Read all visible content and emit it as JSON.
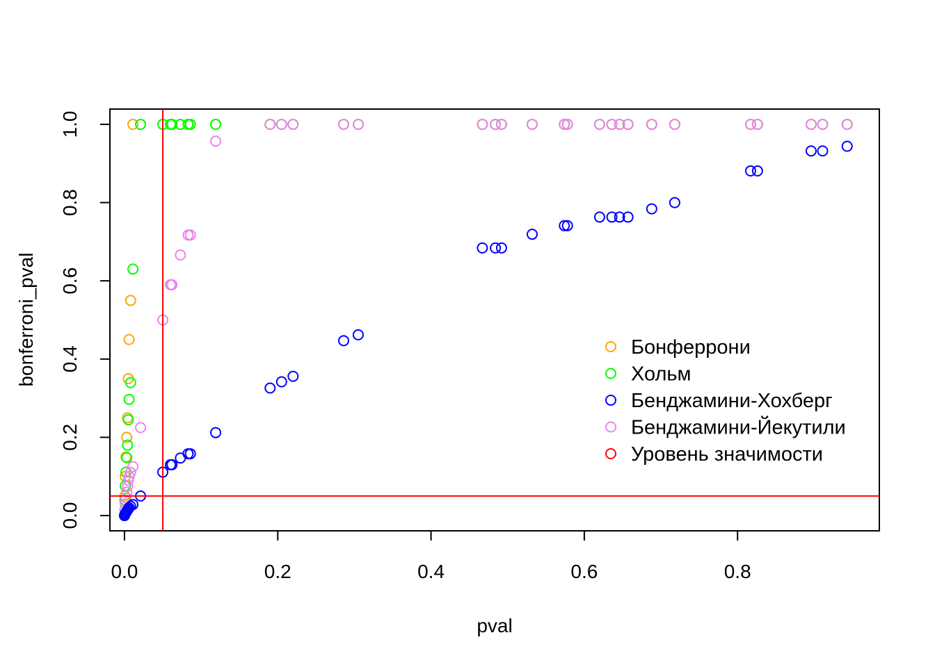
{
  "chart_data": {
    "type": "scatter",
    "xlabel": "pval",
    "ylabel": "bonferroni_pval",
    "xlim": [
      -0.019,
      0.985
    ],
    "ylim": [
      -0.039,
      1.039
    ],
    "xticks": [
      "0.0",
      "0.2",
      "0.4",
      "0.6",
      "0.8"
    ],
    "xtick_values": [
      0,
      0.2,
      0.4,
      0.6,
      0.8
    ],
    "yticks": [
      "0.0",
      "0.2",
      "0.4",
      "0.6",
      "0.8",
      "1.0"
    ],
    "ytick_values": [
      0,
      0.2,
      0.4,
      0.6,
      0.8,
      1.0
    ],
    "grid": false,
    "legend_position": "right",
    "significance_level": 0.05,
    "series": [
      {
        "name": "Бонферрони",
        "color": "#FFA500",
        "x": [
          0.0,
          0.0005,
          0.001,
          0.002,
          0.003,
          0.004,
          0.005,
          0.006,
          0.008,
          0.011,
          0.021,
          0.05,
          0.06,
          0.062,
          0.073,
          0.083,
          0.086,
          0.119,
          0.19,
          0.205,
          0.22,
          0.286,
          0.305,
          0.467,
          0.484,
          0.492,
          0.532,
          0.574,
          0.578,
          0.62,
          0.636,
          0.646,
          0.657,
          0.688,
          0.718,
          0.817,
          0.826,
          0.896,
          0.911,
          0.943
        ],
        "y": [
          0.0,
          0.05,
          0.1,
          0.15,
          0.2,
          0.25,
          0.35,
          0.45,
          0.55,
          1.0,
          1.0,
          1.0,
          1.0,
          1.0,
          1.0,
          1.0,
          1.0,
          1.0,
          1.0,
          1.0,
          1.0,
          1.0,
          1.0,
          1.0,
          1.0,
          1.0,
          1.0,
          1.0,
          1.0,
          1.0,
          1.0,
          1.0,
          1.0,
          1.0,
          1.0,
          1.0,
          1.0,
          1.0,
          1.0,
          1.0
        ]
      },
      {
        "name": "Хольм",
        "color": "#00FF00",
        "x": [
          0.0,
          0.0005,
          0.001,
          0.002,
          0.003,
          0.004,
          0.005,
          0.006,
          0.008,
          0.011,
          0.021,
          0.05,
          0.06,
          0.062,
          0.073,
          0.083,
          0.086,
          0.119,
          0.19,
          0.205,
          0.22,
          0.286,
          0.305,
          0.467,
          0.484,
          0.492,
          0.532,
          0.574,
          0.578,
          0.62,
          0.636,
          0.646,
          0.657,
          0.688,
          0.718,
          0.817,
          0.826,
          0.896,
          0.911,
          0.943
        ],
        "y": [
          0.0,
          0.04,
          0.076,
          0.111,
          0.148,
          0.18,
          0.245,
          0.297,
          0.34,
          0.63,
          1.0,
          1.0,
          1.0,
          1.0,
          1.0,
          1.0,
          1.0,
          1.0,
          1.0,
          1.0,
          1.0,
          1.0,
          1.0,
          1.0,
          1.0,
          1.0,
          1.0,
          1.0,
          1.0,
          1.0,
          1.0,
          1.0,
          1.0,
          1.0,
          1.0,
          1.0,
          1.0,
          1.0,
          1.0,
          1.0
        ]
      },
      {
        "name": "Бенджамини-Йекутили",
        "color": "#EE82EE",
        "x": [
          0.0,
          0.0005,
          0.001,
          0.002,
          0.003,
          0.004,
          0.005,
          0.006,
          0.008,
          0.011,
          0.021,
          0.05,
          0.06,
          0.062,
          0.073,
          0.083,
          0.086,
          0.119,
          0.19,
          0.205,
          0.22,
          0.286,
          0.305,
          0.467,
          0.484,
          0.492,
          0.532,
          0.574,
          0.578,
          0.62,
          0.636,
          0.646,
          0.657,
          0.688,
          0.718,
          0.817,
          0.826,
          0.896,
          0.911,
          0.943
        ],
        "y": [
          0.0,
          0.015,
          0.03,
          0.045,
          0.06,
          0.075,
          0.09,
          0.1,
          0.11,
          0.125,
          0.225,
          0.5,
          0.59,
          0.59,
          0.666,
          0.717,
          0.717,
          0.957,
          1.0,
          1.0,
          1.0,
          1.0,
          1.0,
          1.0,
          1.0,
          1.0,
          1.0,
          1.0,
          1.0,
          1.0,
          1.0,
          1.0,
          1.0,
          1.0,
          1.0,
          1.0,
          1.0,
          1.0,
          1.0,
          1.0
        ]
      },
      {
        "name": "Бенджамини-Хохберг",
        "color": "#0000FF",
        "x": [
          0.0,
          0.0005,
          0.001,
          0.002,
          0.003,
          0.004,
          0.005,
          0.006,
          0.008,
          0.011,
          0.021,
          0.05,
          0.06,
          0.062,
          0.073,
          0.083,
          0.086,
          0.119,
          0.19,
          0.205,
          0.22,
          0.286,
          0.305,
          0.467,
          0.484,
          0.492,
          0.532,
          0.574,
          0.578,
          0.62,
          0.636,
          0.646,
          0.657,
          0.688,
          0.718,
          0.817,
          0.826,
          0.896,
          0.911,
          0.943
        ],
        "y": [
          0.0,
          0.002,
          0.005,
          0.008,
          0.011,
          0.014,
          0.017,
          0.02,
          0.024,
          0.028,
          0.05,
          0.111,
          0.13,
          0.13,
          0.147,
          0.158,
          0.158,
          0.212,
          0.326,
          0.342,
          0.356,
          0.447,
          0.462,
          0.684,
          0.684,
          0.684,
          0.719,
          0.741,
          0.741,
          0.763,
          0.763,
          0.763,
          0.763,
          0.784,
          0.8,
          0.881,
          0.881,
          0.932,
          0.932,
          0.944
        ]
      }
    ],
    "legend": [
      {
        "label": "Бонферрони",
        "color": "#FFA500"
      },
      {
        "label": "Хольм",
        "color": "#00FF00"
      },
      {
        "label": "Бенджамини-Хохберг",
        "color": "#0000FF"
      },
      {
        "label": "Бенджамини-Йекутили",
        "color": "#EE82EE"
      },
      {
        "label": "Уровень значимости",
        "color": "#FF0000"
      }
    ]
  }
}
